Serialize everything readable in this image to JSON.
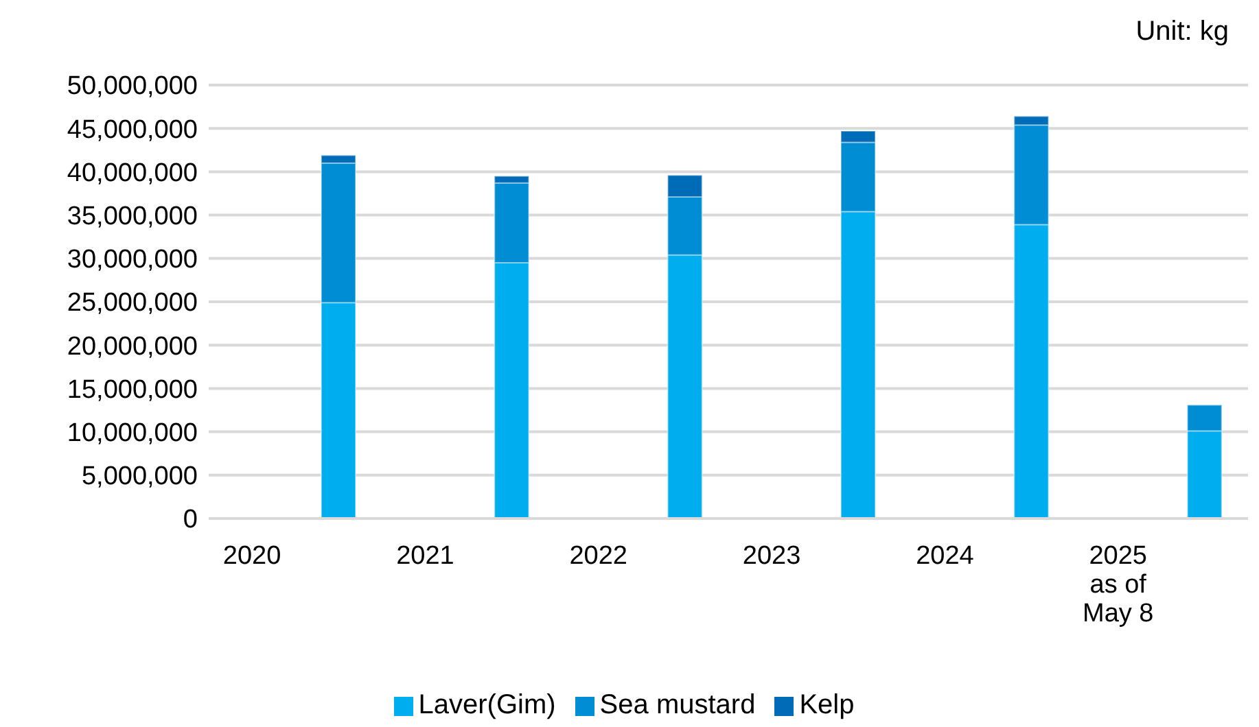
{
  "chart_data": {
    "type": "bar",
    "stacked": true,
    "categories": [
      "2020",
      null,
      "2021",
      null,
      "2022",
      null,
      "2023",
      null,
      "2024",
      null,
      "2025 as of May 8",
      null
    ],
    "series": [
      {
        "name": "Laver(Gim)",
        "color": "#00adee",
        "values": [
          null,
          24900000,
          null,
          29500000,
          null,
          30400000,
          null,
          35400000,
          null,
          33900000,
          null,
          10100000
        ]
      },
      {
        "name": "Sea mustard",
        "color": "#008dd4",
        "values": [
          null,
          16100000,
          null,
          9200000,
          null,
          6700000,
          null,
          8000000,
          null,
          11500000,
          null,
          3000000
        ]
      },
      {
        "name": "Kelp",
        "color": "#006cb8",
        "values": [
          null,
          900000,
          null,
          800000,
          null,
          2500000,
          null,
          1300000,
          null,
          1000000,
          null,
          null
        ]
      }
    ],
    "ylim": [
      0,
      50000000
    ],
    "yticks": [
      0,
      {
        "value": 5000000,
        "label": "5,000,000"
      },
      {
        "value": 10000000,
        "label": "10,000,000"
      },
      {
        "value": 15000000,
        "label": "15,000,000"
      },
      {
        "value": 20000000,
        "label": "20,000,000"
      },
      {
        "value": 25000000,
        "label": "25,000,000"
      },
      {
        "value": 30000000,
        "label": "30,000,000"
      },
      {
        "value": 35000000,
        "label": "35,000,000"
      },
      {
        "value": 40000000,
        "label": "40,000,000"
      },
      {
        "value": 45000000,
        "label": "45,000,000"
      },
      {
        "value": 50000000,
        "label": "50,000,000"
      }
    ],
    "grid": "y",
    "legend": "bottom",
    "annotations": [
      "Unit: kg"
    ]
  }
}
